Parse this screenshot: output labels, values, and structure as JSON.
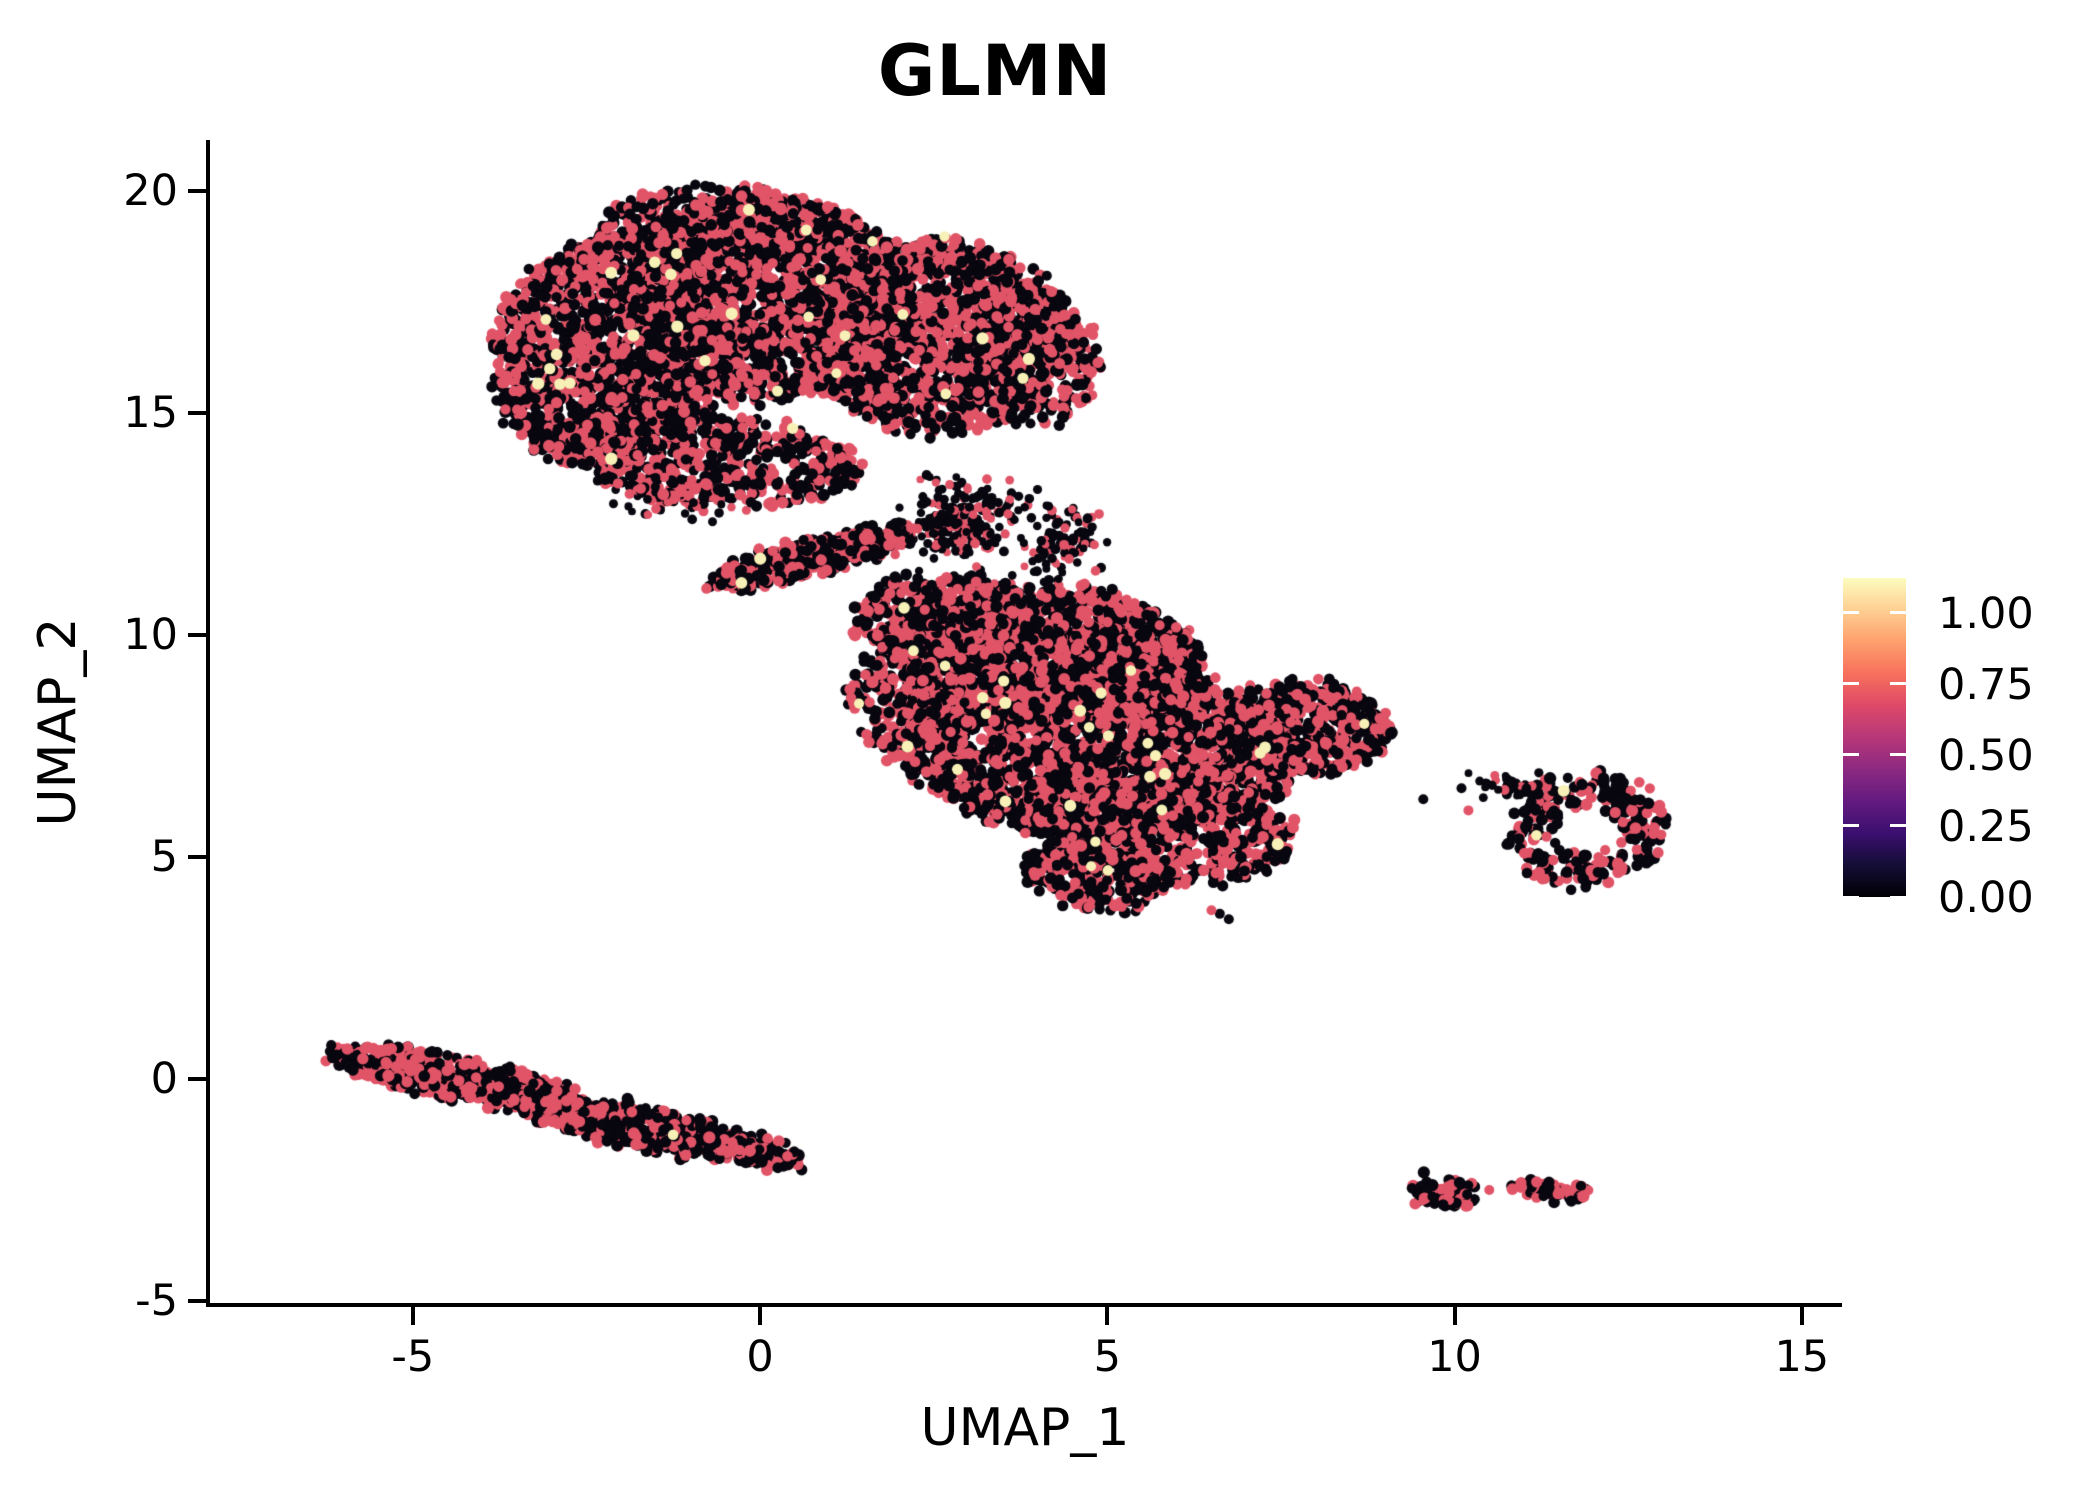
{
  "title": "GLMN",
  "axes": {
    "x": {
      "label": "UMAP_1",
      "tick_labels": [
        "-5",
        "0",
        "5",
        "10",
        "15"
      ]
    },
    "y": {
      "label": "UMAP_2",
      "tick_labels": [
        "20",
        "15",
        "10",
        "5",
        "0",
        "-5"
      ]
    }
  },
  "legend": {
    "tick_labels": [
      "1.00",
      "0.75",
      "0.50",
      "0.25",
      "0.00"
    ]
  },
  "colors": {
    "background": "#ffffff",
    "axis": "#000000",
    "text": "#000000",
    "point_zero": "#08060f",
    "point_mid": "#e15467",
    "point_high": "#f7f1b7"
  },
  "colormap_stops": [
    "#fcfdbf",
    "#fecf92",
    "#fe9f6d",
    "#f7705c",
    "#de4968",
    "#b73779",
    "#8c2981",
    "#641a80",
    "#3b0f70",
    "#140e36",
    "#000004"
  ],
  "chart_data": {
    "type": "scatter",
    "title": "GLMN",
    "xlabel": "UMAP_1",
    "ylabel": "UMAP_2",
    "xlim": [
      -7.92,
      15.55
    ],
    "ylim": [
      -5.09,
      21.15
    ],
    "x_ticks": [
      -5,
      0,
      5,
      10,
      15
    ],
    "y_ticks": [
      20,
      15,
      10,
      5,
      0,
      -5
    ],
    "grid": false,
    "legend_position": "right",
    "colorbar": {
      "colormap": "magma",
      "vmax": 1.123,
      "tick_values": [
        1.0,
        0.75,
        0.5,
        0.25,
        0.0
      ]
    },
    "expression_levels": {
      "zero": 0.0,
      "mid": 0.62,
      "high": 1.1
    },
    "clusters": [
      {
        "group": "upper-blob-left-lobe",
        "cx": -2.1,
        "cy": 16.4,
        "sx": 1.75,
        "sy": 2.6,
        "rot": -8,
        "n": 1700,
        "frac_mid": 0.46,
        "frac_high": 0.004
      },
      {
        "group": "upper-blob-top-middle",
        "cx": 0.1,
        "cy": 17.6,
        "sx": 2.1,
        "sy": 2.35,
        "rot": 0,
        "n": 1900,
        "frac_mid": 0.46,
        "frac_high": 0.004
      },
      {
        "group": "upper-blob-top-cap",
        "cx": -0.8,
        "cy": 19.2,
        "sx": 1.5,
        "sy": 0.95,
        "rot": 3,
        "n": 300,
        "frac_mid": 0.44,
        "frac_high": 0.003
      },
      {
        "group": "upper-blob-right-lobe",
        "cx": 2.6,
        "cy": 16.7,
        "sx": 1.9,
        "sy": 2.15,
        "rot": 0,
        "n": 1400,
        "frac_mid": 0.45,
        "frac_high": 0.004
      },
      {
        "group": "upper-blob-right-bump",
        "cx": 3.9,
        "cy": 16.2,
        "sx": 1.0,
        "sy": 1.5,
        "rot": 0,
        "n": 330,
        "frac_mid": 0.45,
        "frac_high": 0.004
      },
      {
        "group": "upper-blob-lower-band",
        "cx": -0.7,
        "cy": 14.0,
        "sx": 2.2,
        "sy": 1.0,
        "rot": -8,
        "n": 550,
        "frac_mid": 0.42,
        "frac_high": 0.003
      },
      {
        "group": "beak-arm",
        "cx": 0.75,
        "cy": 11.75,
        "sx": 1.55,
        "sy": 0.33,
        "rot": 22,
        "n": 420,
        "frac_mid": 0.45,
        "frac_high": 0.002
      },
      {
        "group": "neck-scatter-1",
        "cx": 2.9,
        "cy": 12.6,
        "sx": 0.8,
        "sy": 0.9,
        "rot": -10,
        "n": 230,
        "dist": "gauss",
        "frac_mid": 0.3,
        "frac_high": 0
      },
      {
        "group": "neck-scatter-2",
        "cx": 4.3,
        "cy": 12.1,
        "sx": 0.7,
        "sy": 0.95,
        "rot": 0,
        "n": 110,
        "dist": "gauss",
        "frac_mid": 0.3,
        "frac_high": 0
      },
      {
        "group": "under-left-scatter",
        "cx": -1.3,
        "cy": 13.1,
        "sx": 0.85,
        "sy": 0.5,
        "rot": -12,
        "n": 90,
        "dist": "gauss",
        "frac_mid": 0.35,
        "frac_high": 0
      },
      {
        "group": "middle-blob-top-band",
        "cx": 4.1,
        "cy": 9.6,
        "sx": 2.3,
        "sy": 1.5,
        "rot": -8,
        "n": 1400,
        "frac_mid": 0.46,
        "frac_high": 0.005
      },
      {
        "group": "middle-blob-topleft",
        "cx": 2.4,
        "cy": 10.5,
        "sx": 1.1,
        "sy": 0.85,
        "rot": 25,
        "n": 320,
        "frac_mid": 0.44,
        "frac_high": 0.003
      },
      {
        "group": "middle-blob-main",
        "cx": 4.9,
        "cy": 7.4,
        "sx": 2.9,
        "sy": 1.9,
        "rot": -5,
        "n": 2300,
        "frac_mid": 0.45,
        "frac_high": 0.005
      },
      {
        "group": "middle-blob-lower",
        "cx": 5.7,
        "cy": 5.7,
        "sx": 2.0,
        "sy": 1.25,
        "rot": -14,
        "n": 750,
        "frac_mid": 0.43,
        "frac_high": 0.005
      },
      {
        "group": "middle-blob-right-lobe",
        "cx": 7.8,
        "cy": 7.9,
        "sx": 1.25,
        "sy": 1.05,
        "rot": 0,
        "n": 480,
        "frac_mid": 0.44,
        "frac_high": 0.004
      },
      {
        "group": "middle-blob-right-tail",
        "cx": 8.7,
        "cy": 8.0,
        "sx": 0.45,
        "sy": 0.3,
        "rot": -25,
        "n": 55,
        "frac_mid": 0.4,
        "frac_high": 0
      },
      {
        "group": "middle-blob-bottom-tip",
        "cx": 4.8,
        "cy": 4.5,
        "sx": 1.05,
        "sy": 0.65,
        "rot": -20,
        "n": 230,
        "frac_mid": 0.42,
        "frac_high": 0.004
      },
      {
        "group": "middle-blob-left-edge",
        "cx": 2.1,
        "cy": 8.5,
        "sx": 0.75,
        "sy": 1.4,
        "rot": 5,
        "n": 240,
        "frac_mid": 0.44,
        "frac_high": 0.003
      },
      {
        "group": "ring-cluster",
        "cx": 11.9,
        "cy": 5.6,
        "sx": 1.12,
        "sy": 1.27,
        "rot": -18,
        "n": 260,
        "hole": 0.45,
        "frac_mid": 0.36,
        "frac_high": 0.012
      },
      {
        "group": "ring-cluster-tail",
        "cx": 10.85,
        "cy": 6.6,
        "sx": 0.6,
        "sy": 0.3,
        "rot": -10,
        "n": 40,
        "dist": "gauss",
        "frac_mid": 0.18,
        "frac_high": 0
      },
      {
        "group": "lower-left-streak-a",
        "cx": -4.4,
        "cy": 0.02,
        "sx": 1.95,
        "sy": 0.45,
        "rot": -17,
        "n": 620,
        "frac_mid": 0.4,
        "frac_high": 0.002
      },
      {
        "group": "lower-left-streak-b",
        "cx": -1.7,
        "cy": -1.1,
        "sx": 1.9,
        "sy": 0.4,
        "rot": -17,
        "n": 570,
        "frac_mid": 0.4,
        "frac_high": 0.002
      },
      {
        "group": "lower-left-streak-tip",
        "cx": 0.05,
        "cy": -1.7,
        "sx": 0.6,
        "sy": 0.24,
        "rot": -15,
        "n": 100,
        "frac_mid": 0.38,
        "frac_high": 0
      },
      {
        "group": "island-left",
        "cx": 9.85,
        "cy": -2.55,
        "sx": 0.45,
        "sy": 0.32,
        "rot": -10,
        "n": 80,
        "frac_mid": 0.42,
        "frac_high": 0
      },
      {
        "group": "island-right",
        "cx": 11.4,
        "cy": -2.5,
        "sx": 0.6,
        "sy": 0.16,
        "rot": -6,
        "n": 62,
        "frac_mid": 0.45,
        "frac_high": 0
      }
    ],
    "outliers": [
      {
        "x": 10.5,
        "y": -2.5,
        "level": "mid"
      },
      {
        "x": 6.5,
        "y": 3.8,
        "level": "mid"
      },
      {
        "x": 6.62,
        "y": 3.72,
        "level": "zero"
      },
      {
        "x": 6.75,
        "y": 3.6,
        "level": "zero"
      },
      {
        "x": 9.55,
        "y": 6.3,
        "level": "zero"
      },
      {
        "x": 10.1,
        "y": 6.55,
        "level": "zero"
      },
      {
        "x": 10.2,
        "y": 6.05,
        "level": "mid"
      }
    ]
  }
}
